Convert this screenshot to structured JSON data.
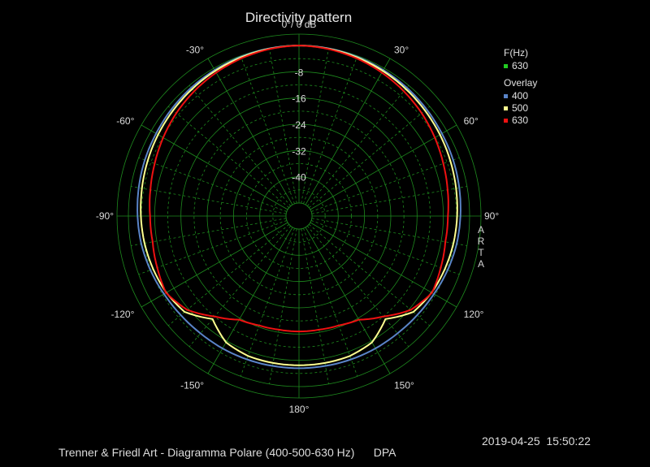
{
  "chart_data": {
    "type": "polar",
    "title": "Directivity pattern",
    "radial_axis": {
      "unit": "dB",
      "zero_label": "0°/ 0 dB",
      "min": -48,
      "max": 0,
      "ticks": [
        -8,
        -16,
        -24,
        -32,
        -40
      ]
    },
    "angle_labels": [
      "0°/ 0 dB",
      "30°",
      "60°",
      "90°",
      "120°",
      "150°",
      "180°",
      "-150°",
      "-120°",
      "-90°",
      "-60°",
      "-30°"
    ],
    "angles_deg": [
      0,
      10,
      20,
      30,
      40,
      50,
      60,
      70,
      80,
      90,
      100,
      110,
      120,
      130,
      140,
      150,
      160,
      170,
      180,
      190,
      200,
      210,
      220,
      230,
      240,
      250,
      260,
      270,
      280,
      290,
      300,
      310,
      320,
      330,
      340,
      350
    ],
    "series": [
      {
        "name": "400",
        "color": "#5a84c8",
        "values": [
          0,
          -0.1,
          -0.3,
          -0.6,
          -0.9,
          -1.3,
          -1.7,
          -2.0,
          -2.4,
          -2.8,
          -3.2,
          -3.8,
          -4.5,
          -5.0,
          -5.3,
          -5.4,
          -5.5,
          -5.6,
          -5.6,
          -5.6,
          -5.5,
          -5.4,
          -5.3,
          -5.0,
          -4.5,
          -3.8,
          -3.2,
          -2.8,
          -2.4,
          -2.0,
          -1.7,
          -1.3,
          -0.9,
          -0.6,
          -0.3,
          -0.1
        ]
      },
      {
        "name": "500",
        "color": "#ffff90",
        "values": [
          0,
          -0.2,
          -0.5,
          -0.9,
          -1.4,
          -1.9,
          -2.4,
          -2.9,
          -3.4,
          -3.8,
          -4.2,
          -4.7,
          -5.3,
          -6.5,
          -11.0,
          -7.5,
          -6.6,
          -6.5,
          -6.5,
          -6.5,
          -6.6,
          -7.5,
          -11.0,
          -6.5,
          -5.3,
          -4.7,
          -4.2,
          -3.8,
          -3.4,
          -2.9,
          -2.4,
          -1.9,
          -1.4,
          -0.9,
          -0.5,
          -0.2
        ]
      },
      {
        "name": "630",
        "color": "#ee1111",
        "values": [
          0,
          -0.3,
          -0.8,
          -1.5,
          -2.3,
          -3.2,
          -4.2,
          -5.2,
          -6.0,
          -6.6,
          -6.7,
          -6.0,
          -5.2,
          -7.5,
          -12.0,
          -15.5,
          -16.5,
          -16.8,
          -16.8,
          -16.8,
          -16.5,
          -15.5,
          -12.0,
          -7.5,
          -5.2,
          -6.0,
          -6.7,
          -6.6,
          -6.0,
          -5.2,
          -4.2,
          -3.2,
          -2.3,
          -1.5,
          -0.8,
          -0.3
        ]
      }
    ],
    "legend": {
      "placement": "top-right",
      "freq_header": "F(Hz)",
      "current": {
        "label": "630",
        "color": "#22cc22"
      },
      "overlay_header": "Overlay",
      "overlay": [
        {
          "label": "400",
          "color": "#5a84c8"
        },
        {
          "label": "500",
          "color": "#ffff90"
        },
        {
          "label": "630",
          "color": "#ee1111"
        }
      ]
    },
    "grid_color": "#1e8a1e"
  },
  "side_label": "ARTA",
  "timestamp": "2019-04-25  15:50:22",
  "footer": "Trenner & Friedl Art - Diagramma Polare (400-500-630 Hz)      DPA"
}
